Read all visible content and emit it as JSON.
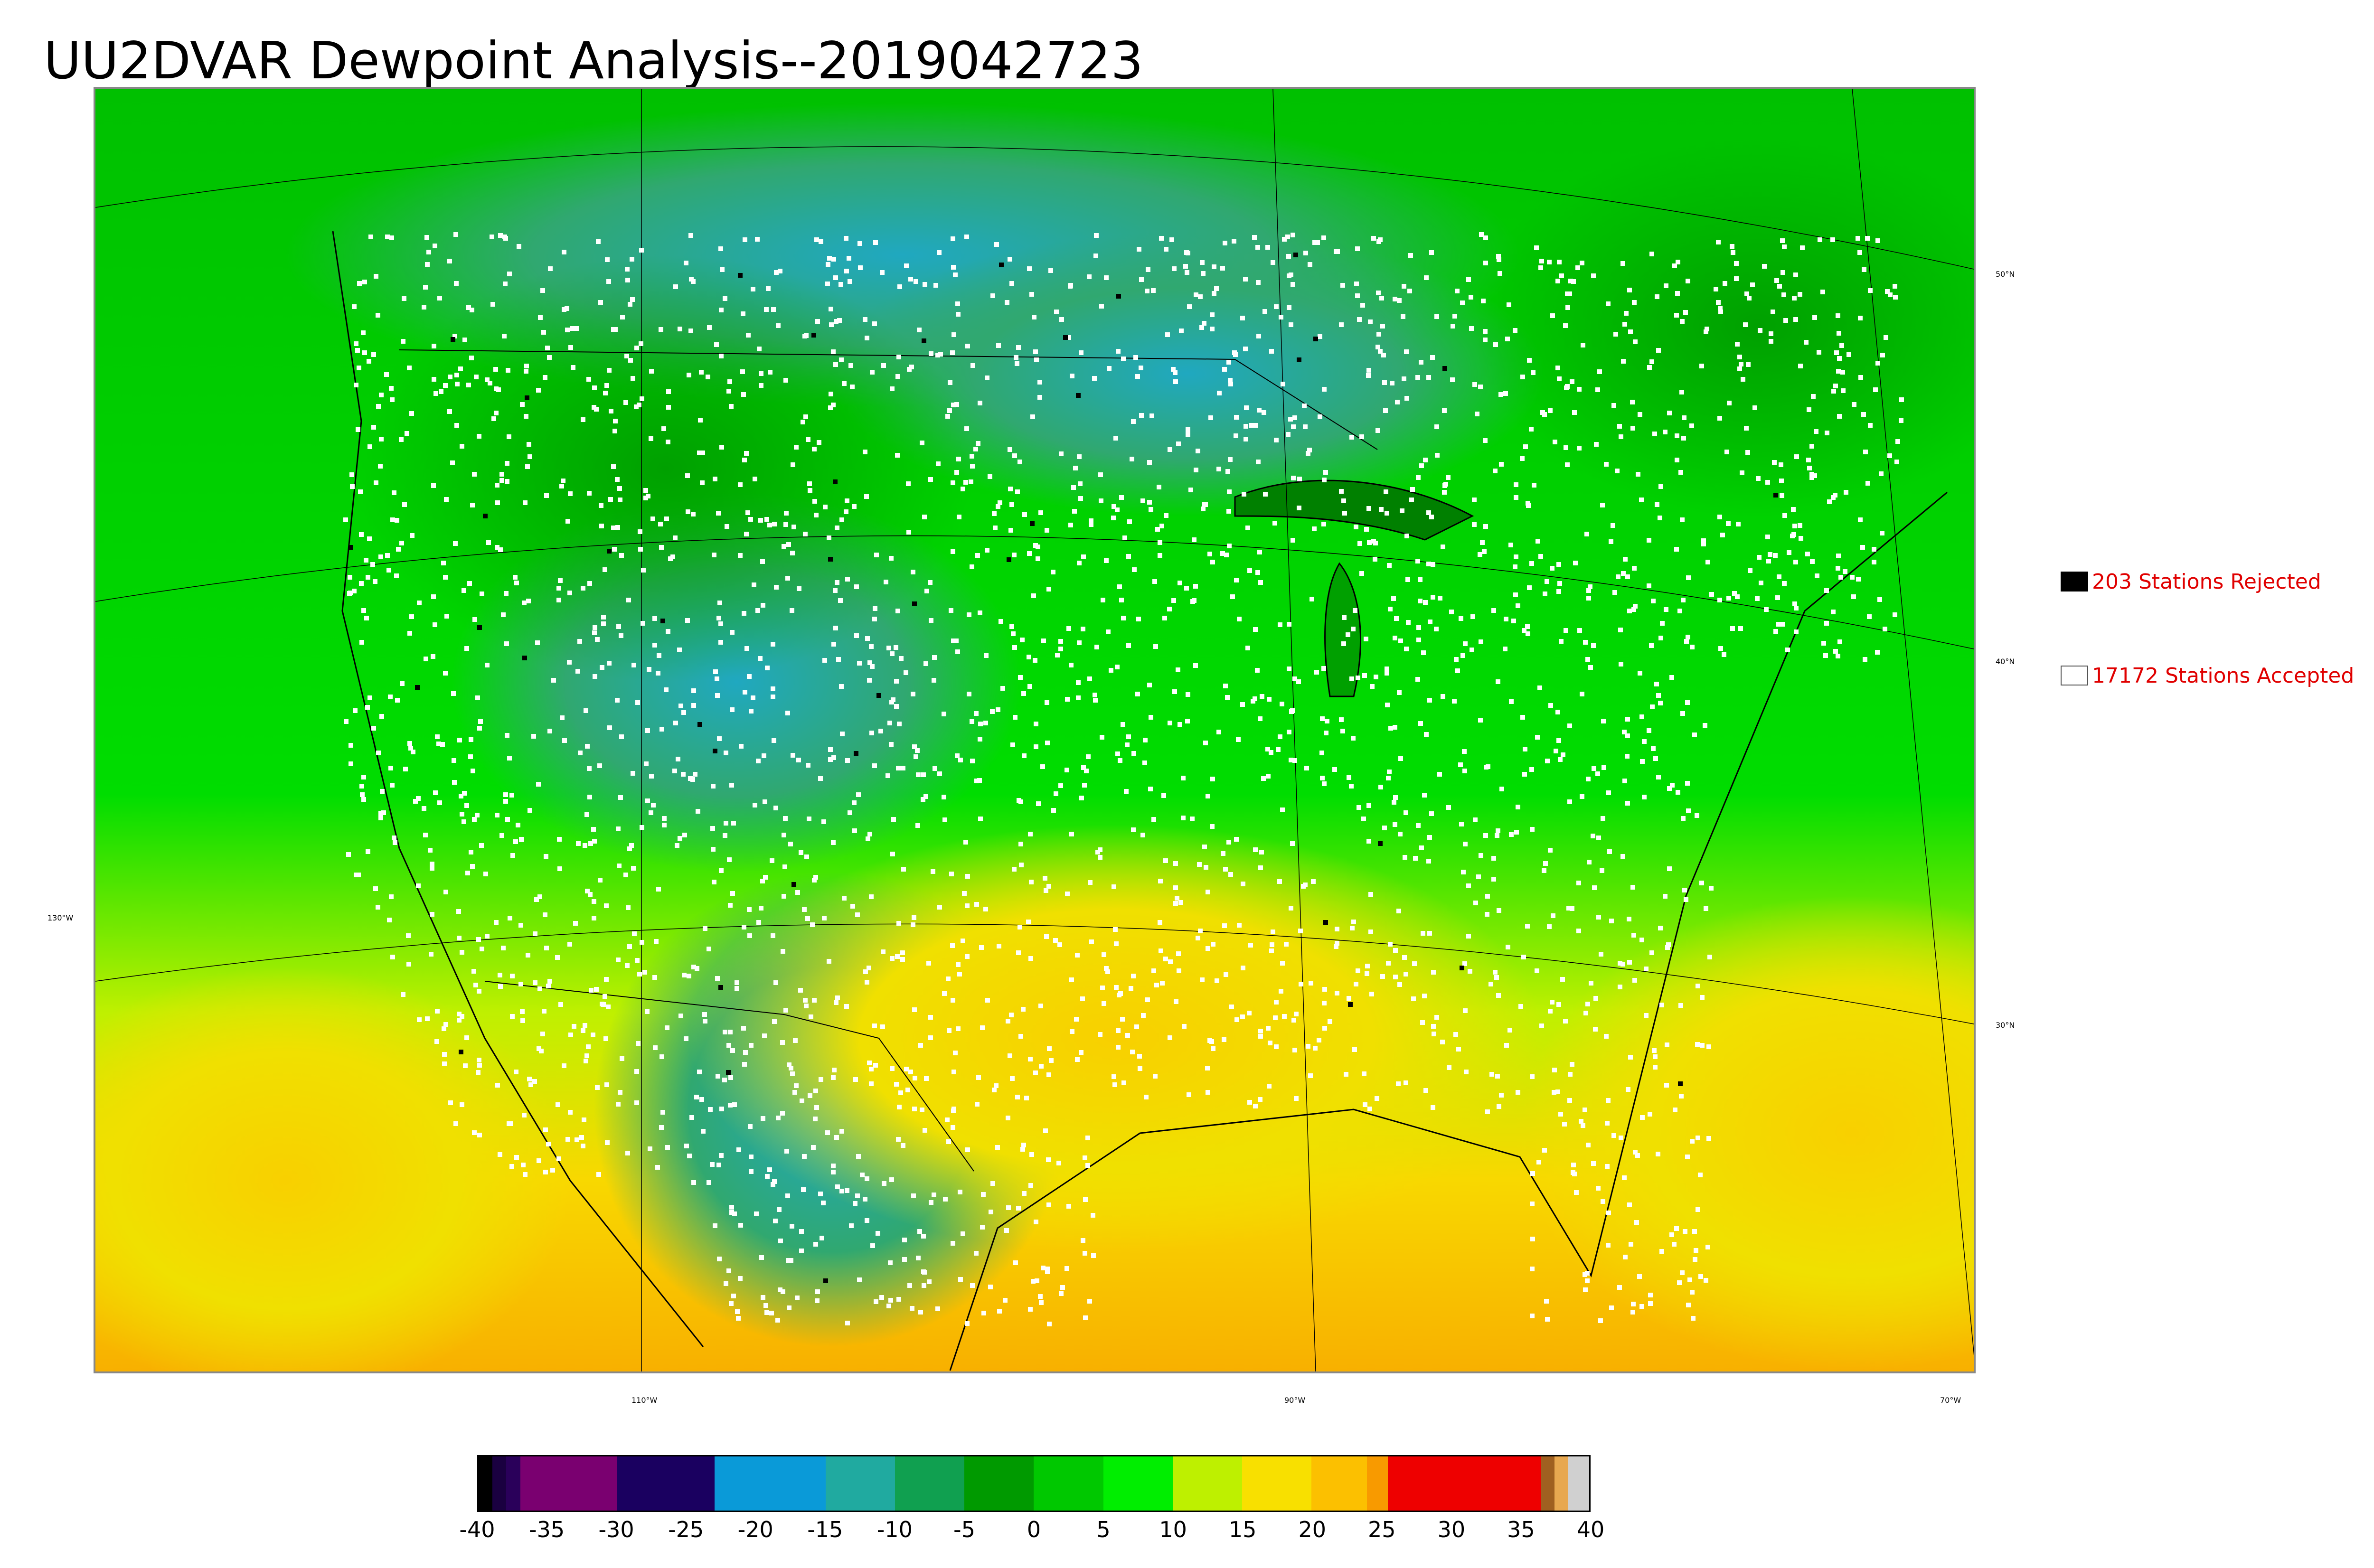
{
  "title": "UU2DVAR Dewpoint Analysis--2019042723",
  "map": {
    "latitude_labels": [
      "50°N",
      "40°N",
      "30°N"
    ],
    "longitude_labels": [
      "130°W",
      "110°W",
      "90°W",
      "70°W"
    ],
    "station_color_accepted": "#ffffff",
    "station_color_rejected": "#000000"
  },
  "legend": {
    "rejected": {
      "label": "203 Stations Rejected",
      "count": 203,
      "swatch_color": "#000000"
    },
    "accepted": {
      "label": "17172 Stations Accepted",
      "count": 17172,
      "swatch_color": "#ffffff"
    }
  },
  "colorbar": {
    "min": -40,
    "max": 40,
    "tick_labels": [
      "-40",
      "-35",
      "-30",
      "-25",
      "-20",
      "-15",
      "-10",
      "-5",
      "0",
      "5",
      "10",
      "15",
      "20",
      "25",
      "30",
      "35",
      "40"
    ],
    "segments": [
      {
        "from": -40,
        "to": -39,
        "color": "#000000"
      },
      {
        "from": -39,
        "to": -38,
        "color": "#1a0040"
      },
      {
        "from": -38,
        "to": -37,
        "color": "#2a005a"
      },
      {
        "from": -37,
        "to": -30,
        "color": "#7a0070"
      },
      {
        "from": -30,
        "to": -23,
        "color": "#1a0060"
      },
      {
        "from": -23,
        "to": -15,
        "color": "#0a9ad8"
      },
      {
        "from": -15,
        "to": -10,
        "color": "#20aaa0"
      },
      {
        "from": -10,
        "to": -5,
        "color": "#10a050"
      },
      {
        "from": -5,
        "to": 0,
        "color": "#009a00"
      },
      {
        "from": 0,
        "to": 5,
        "color": "#00c800"
      },
      {
        "from": 5,
        "to": 10,
        "color": "#00ee00"
      },
      {
        "from": 10,
        "to": 15,
        "color": "#bef000"
      },
      {
        "from": 15,
        "to": 20,
        "color": "#f8e000"
      },
      {
        "from": 20,
        "to": 24,
        "color": "#fcc000"
      },
      {
        "from": 24,
        "to": 25.5,
        "color": "#f89a00"
      },
      {
        "from": 25.5,
        "to": 36.5,
        "color": "#ee0000"
      },
      {
        "from": 36.5,
        "to": 37.5,
        "color": "#a06020"
      },
      {
        "from": 37.5,
        "to": 38.5,
        "color": "#e8a850"
      },
      {
        "from": 38.5,
        "to": 40,
        "color": "#d0d0d0"
      }
    ]
  }
}
